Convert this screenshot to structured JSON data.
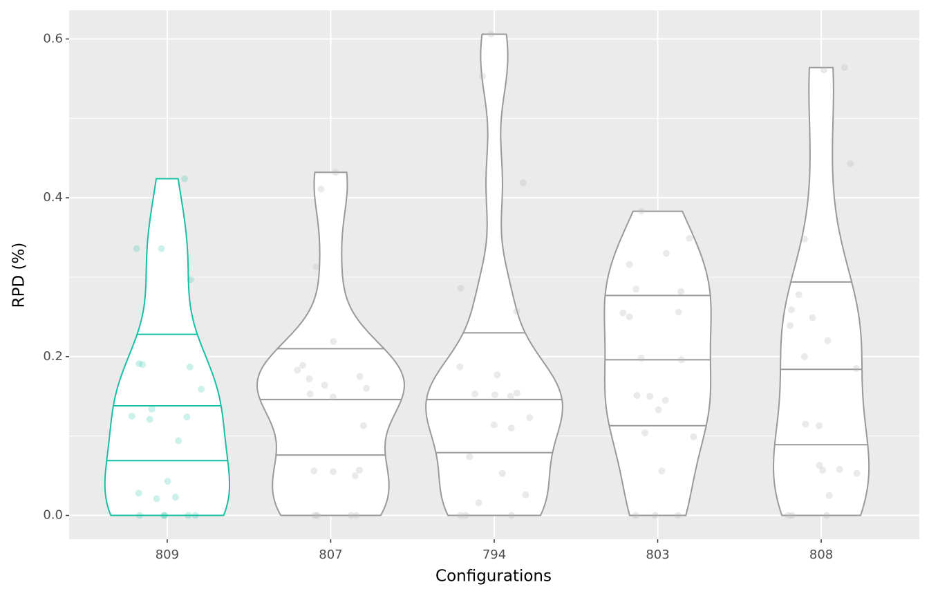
{
  "chart_data": {
    "type": "violin",
    "x_label": "Configurations",
    "y_label": "RPD (%)",
    "categories": [
      "809",
      "807",
      "794",
      "803",
      "808"
    ],
    "ylim": [
      -0.03,
      0.636
    ],
    "yticks": [
      {
        "value": 0,
        "label": "0.0"
      },
      0.2,
      0.4,
      0.6
    ],
    "grid": true,
    "violins": [
      {
        "color": "#17bfa3",
        "values": [
          0.424,
          0.336,
          0.336,
          0.297,
          0.19,
          0.187,
          0.191,
          0.159,
          0.134,
          0.124,
          0.125,
          0.121,
          0.094,
          0.043,
          0.028,
          0.021,
          0.023,
          0,
          0,
          0,
          0,
          0
        ],
        "quantiles": [
          0.069,
          0.138,
          0.228
        ]
      },
      {
        "color": "#999999",
        "values": [
          0.432,
          0.411,
          0.313,
          0.219,
          0.189,
          0.183,
          0.175,
          0.172,
          0.164,
          0.16,
          0.153,
          0.149,
          0.113,
          0.057,
          0.056,
          0.055,
          0.05,
          0,
          0,
          0,
          0
        ],
        "quantiles": [
          0.076,
          0.146,
          0.21
        ]
      },
      {
        "color": "#999999",
        "values": [
          0.606,
          0.553,
          0.419,
          0.286,
          0.257,
          0.187,
          0.177,
          0.153,
          0.152,
          0.154,
          0.15,
          0.123,
          0.114,
          0.11,
          0.074,
          0.053,
          0.026,
          0.016,
          0,
          0,
          0
        ],
        "quantiles": [
          0.079,
          0.146,
          0.23
        ]
      },
      {
        "color": "#999999",
        "values": [
          0.383,
          0.349,
          0.33,
          0.316,
          0.285,
          0.282,
          0.256,
          0.255,
          0.25,
          0.198,
          0.196,
          0.151,
          0.15,
          0.145,
          0.133,
          0.104,
          0.099,
          0.056,
          0,
          0,
          0
        ],
        "quantiles": [
          0.113,
          0.196,
          0.277
        ]
      },
      {
        "color": "#999999",
        "values": [
          0.564,
          0.561,
          0.443,
          0.348,
          0.278,
          0.259,
          0.249,
          0.239,
          0.22,
          0.2,
          0.185,
          0.115,
          0.113,
          0.063,
          0.058,
          0.057,
          0.053,
          0.025,
          0,
          0,
          0
        ],
        "quantiles": [
          0.089,
          0.184,
          0.294
        ]
      }
    ]
  }
}
